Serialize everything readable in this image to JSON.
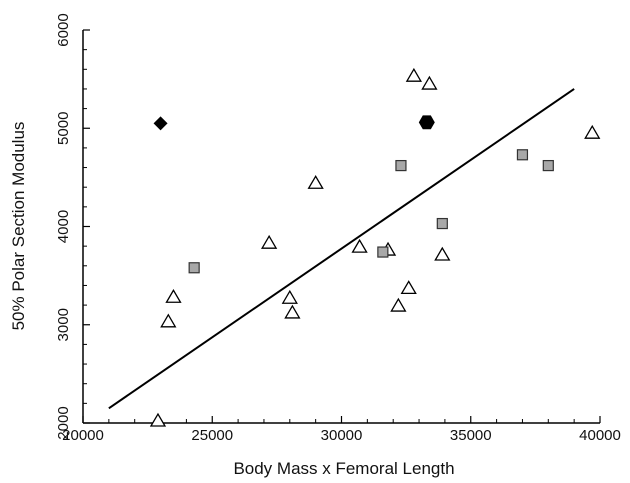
{
  "chart_data": {
    "type": "scatter",
    "xlabel": "Body Mass x Femoral Length",
    "ylabel": "50% Polar Section Modulus",
    "xlim": [
      20000,
      40000
    ],
    "ylim": [
      2000,
      6000
    ],
    "x_ticks": [
      "20000",
      "25000",
      "30000",
      "35000",
      "40000"
    ],
    "y_ticks": [
      "2000",
      "3000",
      "4000",
      "5000",
      "6000"
    ],
    "grid": false,
    "legend": "none",
    "series": [
      {
        "marker": "open-triangle",
        "color": "#000000",
        "points": [
          [
            22900,
            2020
          ],
          [
            23300,
            3030
          ],
          [
            23500,
            3280
          ],
          [
            27200,
            3830
          ],
          [
            28000,
            3270
          ],
          [
            28100,
            3120
          ],
          [
            29000,
            4440
          ],
          [
            30700,
            3790
          ],
          [
            31800,
            3760
          ],
          [
            32200,
            3190
          ],
          [
            32600,
            3370
          ],
          [
            32800,
            5530
          ],
          [
            33400,
            5450
          ],
          [
            33900,
            3710
          ],
          [
            39700,
            4950
          ]
        ]
      },
      {
        "marker": "gray-square",
        "color": "#a8a8a8",
        "points": [
          [
            24300,
            3580
          ],
          [
            31600,
            3740
          ],
          [
            32300,
            4620
          ],
          [
            33900,
            4030
          ],
          [
            37000,
            4730
          ],
          [
            38000,
            4620
          ]
        ]
      },
      {
        "marker": "black-diamond",
        "color": "#000000",
        "points": [
          [
            23000,
            5050
          ]
        ]
      },
      {
        "marker": "black-hexagon",
        "color": "#000000",
        "points": [
          [
            33300,
            5060
          ]
        ]
      }
    ],
    "trendline": {
      "x": [
        21000,
        39000
      ],
      "y": [
        2150,
        5400
      ]
    }
  }
}
